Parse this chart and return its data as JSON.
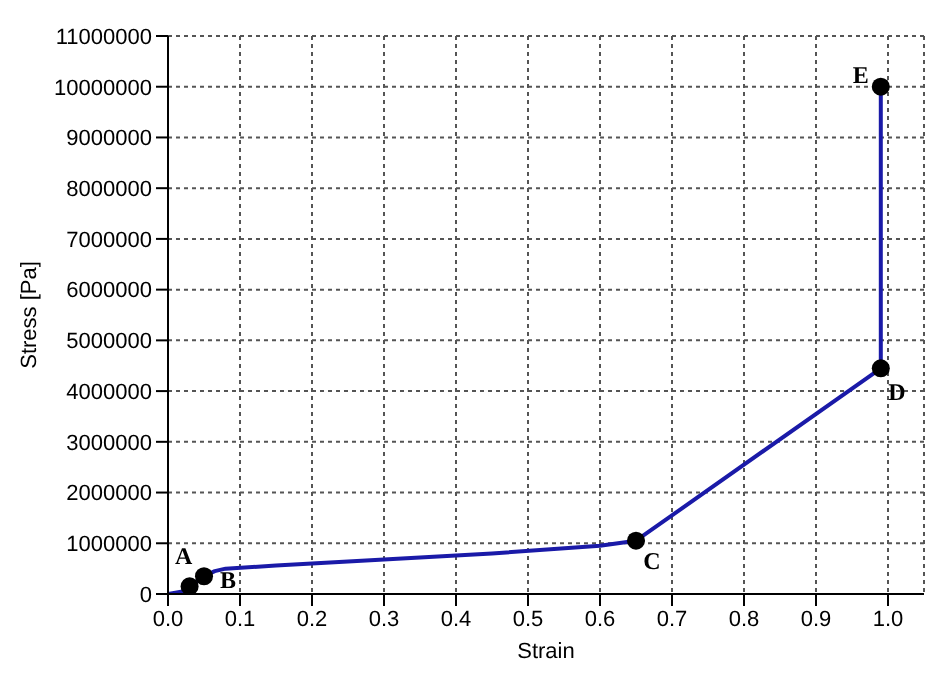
{
  "chart_data": {
    "type": "line",
    "xlabel": "Strain",
    "ylabel": "Stress [Pa]",
    "xlim": [
      0,
      1.05
    ],
    "xticks": [
      {
        "value": 0,
        "label": "0.0"
      },
      0.1,
      0.2,
      0.3,
      0.4,
      0.5,
      0.6,
      0.7,
      0.8,
      0.9,
      {
        "value": 1,
        "label": "1.0"
      }
    ],
    "ylim": [
      0,
      11000000
    ],
    "yticks": [
      0,
      1000000,
      2000000,
      3000000,
      4000000,
      5000000,
      6000000,
      7000000,
      8000000,
      9000000,
      10000000,
      11000000
    ],
    "grid": true,
    "legend": false,
    "series": [
      {
        "color": "#1a1aa8",
        "marker": "none",
        "x": [
          0,
          0.02,
          0.03,
          0.05,
          0.065,
          0.08,
          0.15,
          0.3,
          0.45,
          0.6,
          0.65,
          0.99,
          0.99
        ],
        "values": [
          0,
          50000,
          150000,
          350000,
          450000,
          500000,
          560000,
          680000,
          800000,
          950000,
          1050000,
          4450000,
          10000000
        ]
      },
      {
        "type": "scatter",
        "color": "#000000",
        "marker": "circle",
        "x": [
          0.03,
          0.05,
          0.65,
          0.99,
          0.99
        ],
        "values": [
          150000,
          350000,
          1050000,
          4450000,
          10000000
        ]
      }
    ],
    "annotations": [
      {
        "text": "A",
        "x": 0.03,
        "y": 150000
      },
      {
        "text": "B",
        "x": 0.05,
        "y": 350000
      },
      {
        "text": "C",
        "x": 0.65,
        "y": 1050000
      },
      {
        "text": "D",
        "x": 0.99,
        "y": 4450000
      },
      {
        "text": "E",
        "x": 0.99,
        "y": 10000000
      }
    ]
  }
}
